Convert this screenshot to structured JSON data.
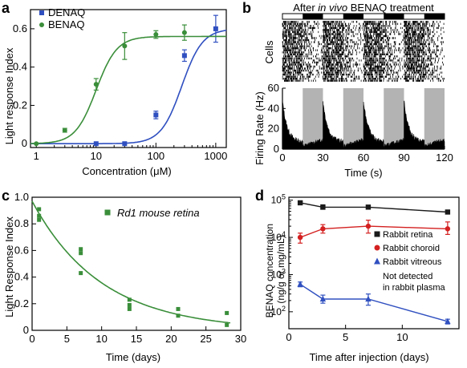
{
  "panels": {
    "a": {
      "label": "a",
      "chart_data": {
        "type": "scatter",
        "xscale": "log",
        "xlim": [
          0.8,
          1500
        ],
        "ylim": [
          -0.02,
          0.7
        ],
        "xlabel": "Concentration (μM)",
        "ylabel": "Light response Index",
        "xticks": [
          1,
          10,
          100,
          1000
        ],
        "xtick_labels": [
          "1",
          "10",
          "100",
          "1000"
        ],
        "yticks": [
          0,
          0.2,
          0.4,
          0.6
        ],
        "ytick_labels": [
          "0",
          "0.2",
          "0.4",
          "0.6"
        ],
        "legend_position": "top-left",
        "series": [
          {
            "name": "DENAQ",
            "marker": "square",
            "color": "#2f4fc0",
            "x": [
              10,
              30,
              100,
              300,
              1000
            ],
            "y": [
              0.0,
              0.0,
              0.15,
              0.46,
              0.6
            ],
            "err": [
              0.0,
              0.0,
              0.02,
              0.03,
              0.07
            ],
            "fit": {
              "bottom": 0.0,
              "top": 0.6,
              "ec50": 270,
              "hill": 2.5
            }
          },
          {
            "name": "BENAQ",
            "marker": "circle",
            "color": "#3a8e3a",
            "x": [
              1,
              3,
              10,
              30,
              100,
              300
            ],
            "y": [
              0.0,
              0.07,
              0.31,
              0.51,
              0.57,
              0.58
            ],
            "err": [
              0.0,
              0.01,
              0.03,
              0.07,
              0.02,
              0.04
            ],
            "fit": {
              "bottom": 0.0,
              "top": 0.56,
              "ec50": 10,
              "hill": 2.5
            }
          }
        ]
      }
    },
    "b": {
      "label": "b",
      "title_parts": [
        "After ",
        "in vivo",
        " BENAQ treatment"
      ],
      "chart_data": {
        "type": "raster_histogram",
        "xlim": [
          0,
          120
        ],
        "xlabel": "Time (s)",
        "raster_ylabel": "Cells",
        "hist_ylabel": "Firing Rate (Hz)",
        "ylim": [
          0,
          60
        ],
        "xticks": [
          0,
          30,
          60,
          90,
          120
        ],
        "yticks": [
          0,
          20,
          40,
          60
        ],
        "light_cycle_s": 30,
        "light_on_s": 15,
        "cycles": 4,
        "peak_rate_hz": 48,
        "baseline_rate_hz": 7
      }
    },
    "c": {
      "label": "c",
      "chart_data": {
        "type": "scatter",
        "xlim": [
          0,
          30
        ],
        "ylim": [
          0,
          1.0
        ],
        "xlabel": "Time (days)",
        "ylabel": "Light Response Index",
        "xticks": [
          0,
          5,
          10,
          15,
          20,
          25,
          30
        ],
        "yticks": [
          0,
          0.2,
          0.4,
          0.6,
          0.8,
          1.0
        ],
        "ytick_labels": [
          "0",
          "0.2",
          "0.4",
          "0.6",
          "0.8",
          "1.0"
        ],
        "legend_position": "top-right",
        "series": [
          {
            "name": "Rd1 mouse retina",
            "marker": "square",
            "color": "#3a8e3a",
            "x": [
              1,
              1,
              1,
              7,
              7,
              7,
              14,
              14,
              14,
              21,
              21,
              28,
              28
            ],
            "y": [
              0.91,
              0.86,
              0.83,
              0.61,
              0.58,
              0.43,
              0.23,
              0.19,
              0.16,
              0.16,
              0.11,
              0.13,
              0.04
            ],
            "fit": {
              "type": "exponential",
              "a": 0.97,
              "tau": 10
            }
          }
        ]
      }
    },
    "d": {
      "label": "d",
      "chart_data": {
        "type": "line",
        "yscale": "log",
        "xlim": [
          0,
          15
        ],
        "ylim": [
          35,
          120000
        ],
        "xlabel": "Time after injection (days)",
        "ylabel": "BENAQ concentration (ng/g or mg/mL)",
        "ylabel_lines": [
          "BENAQ concentration",
          "(ng/g or mg/mL)"
        ],
        "xticks": [
          0,
          5,
          10
        ],
        "yticks": [
          100,
          1000,
          10000,
          100000
        ],
        "ytick_labels": [
          {
            "base": "10",
            "exp": "2"
          },
          {
            "base": "10",
            "exp": "3"
          },
          {
            "base": "10",
            "exp": "4"
          },
          {
            "base": "10",
            "exp": "5"
          }
        ],
        "legend_position": "right",
        "note": "Not detected in rabbit plasma",
        "note_lines": [
          "Not detected",
          "in rabbit plasma"
        ],
        "series": [
          {
            "name": "Rabbit retina",
            "marker": "square",
            "color": "#1a1a1a",
            "x": [
              1,
              3,
              7,
              14
            ],
            "y": [
              85000,
              65000,
              65000,
              48000
            ],
            "err_lo": [
              7000,
              8000,
              7000,
              5000
            ],
            "err_hi": [
              7000,
              10000,
              8000,
              5000
            ]
          },
          {
            "name": "Rabbit choroid",
            "marker": "circle",
            "color": "#d42020",
            "x": [
              1,
              3,
              7,
              14
            ],
            "y": [
              10000,
              17000,
              20000,
              17000
            ],
            "err_lo": [
              3000,
              4000,
              7000,
              5000
            ],
            "err_hi": [
              3000,
              5000,
              9000,
              9000
            ]
          },
          {
            "name": "Rabbit vitreous",
            "marker": "triangle",
            "color": "#3050c0",
            "x": [
              1,
              3,
              7,
              14
            ],
            "y": [
              550,
              220,
              220,
              55
            ],
            "err_lo": [
              80,
              50,
              70,
              8
            ],
            "err_hi": [
              80,
              60,
              80,
              8
            ]
          }
        ]
      }
    }
  }
}
